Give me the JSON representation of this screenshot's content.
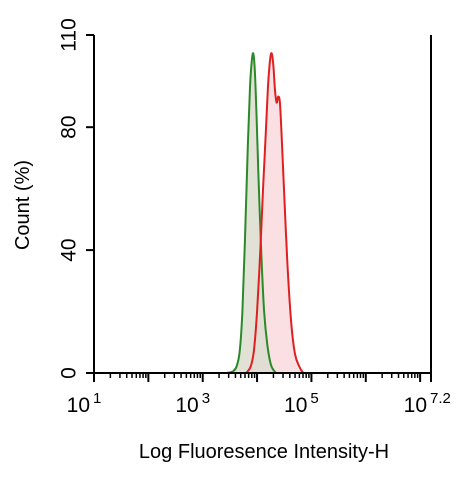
{
  "chart_data": {
    "type": "area",
    "title": "",
    "xlabel": "Log Fluoresence Intensity-H",
    "ylabel": "Count  (%)",
    "x_scale": "log10",
    "xlim": [
      1,
      7.2
    ],
    "ylim": [
      0,
      110
    ],
    "y_ticks": [
      {
        "value": 0,
        "label": "0"
      },
      {
        "value": 40,
        "label": "40"
      },
      {
        "value": 80,
        "label": "80"
      },
      {
        "value": 110,
        "label": "110"
      }
    ],
    "x_ticks": [
      {
        "value": 1,
        "base": "10",
        "exp": "1"
      },
      {
        "value": 3,
        "base": "10",
        "exp": "3"
      },
      {
        "value": 5,
        "base": "10",
        "exp": "5"
      },
      {
        "value": 7.2,
        "base": "10",
        "exp": "7.2"
      }
    ],
    "grid": false,
    "series": [
      {
        "color": "#2a8a2a",
        "fill": "#dcdccf",
        "points": [
          [
            3.45,
            0
          ],
          [
            3.55,
            0.5
          ],
          [
            3.62,
            2
          ],
          [
            3.68,
            7
          ],
          [
            3.73,
            20
          ],
          [
            3.78,
            45
          ],
          [
            3.83,
            74
          ],
          [
            3.87,
            93
          ],
          [
            3.9,
            101
          ],
          [
            3.93,
            104
          ],
          [
            3.96,
            98
          ],
          [
            3.99,
            84
          ],
          [
            4.03,
            62
          ],
          [
            4.08,
            38
          ],
          [
            4.13,
            20
          ],
          [
            4.19,
            9
          ],
          [
            4.25,
            3
          ],
          [
            4.3,
            1
          ],
          [
            4.35,
            0
          ]
        ]
      },
      {
        "color": "#e02020",
        "fill": "#fbe0e3",
        "points": [
          [
            3.8,
            0
          ],
          [
            3.88,
            2
          ],
          [
            3.94,
            7
          ],
          [
            4.0,
            20
          ],
          [
            4.06,
            40
          ],
          [
            4.11,
            60
          ],
          [
            4.16,
            78
          ],
          [
            4.2,
            93
          ],
          [
            4.24,
            102
          ],
          [
            4.27,
            104
          ],
          [
            4.3,
            100
          ],
          [
            4.33,
            92
          ],
          [
            4.36,
            88
          ],
          [
            4.39,
            90
          ],
          [
            4.42,
            88
          ],
          [
            4.45,
            78
          ],
          [
            4.5,
            58
          ],
          [
            4.56,
            35
          ],
          [
            4.63,
            16
          ],
          [
            4.7,
            6
          ],
          [
            4.78,
            2
          ],
          [
            4.85,
            0
          ]
        ]
      }
    ]
  }
}
